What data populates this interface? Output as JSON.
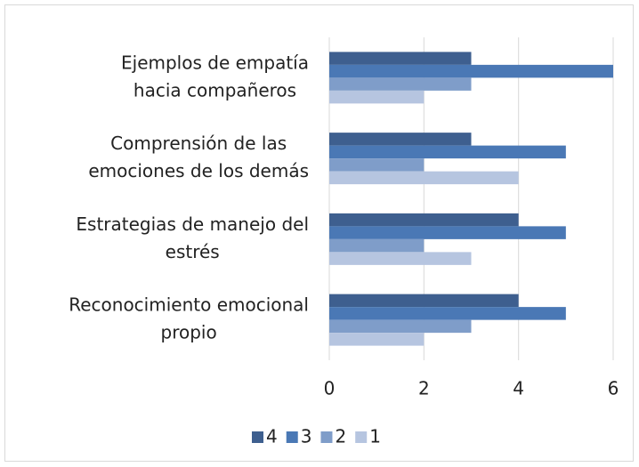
{
  "chart_data": {
    "type": "bar",
    "orientation": "horizontal",
    "categories": [
      [
        "Ejemplos de empatía",
        "hacia compañeros"
      ],
      [
        "Comprensión de las",
        "emociones de los demás"
      ],
      [
        "Estrategias de manejo del",
        "estrés"
      ],
      [
        "Reconocimiento emocional",
        "propio"
      ]
    ],
    "series": [
      {
        "name": "4",
        "color": "#3e5f8f",
        "values": [
          3,
          3,
          4,
          4
        ]
      },
      {
        "name": "3",
        "color": "#4a78b5",
        "values": [
          6,
          5,
          5,
          5
        ]
      },
      {
        "name": "2",
        "color": "#7f9dc9",
        "values": [
          3,
          2,
          2,
          3
        ]
      },
      {
        "name": "1",
        "color": "#b6c5e0",
        "values": [
          2,
          4,
          3,
          2
        ]
      }
    ],
    "xlim": [
      0,
      6
    ],
    "xticks": [
      0,
      2,
      4,
      6
    ],
    "grid": true,
    "legend": "bottom"
  }
}
